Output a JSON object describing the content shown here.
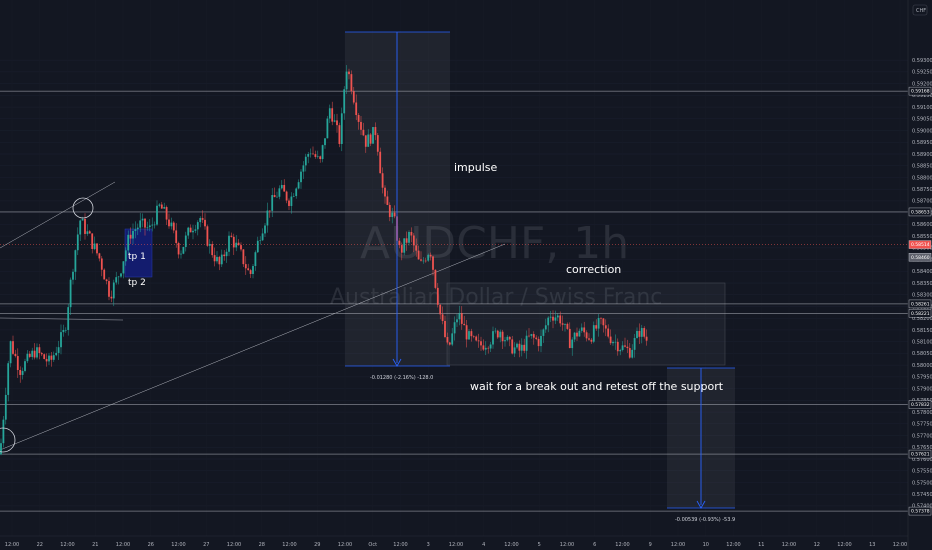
{
  "symbol": {
    "ticker": "AUDCHF, 1h",
    "name": "Australian Dollar / Swiss Franc",
    "currency": "CHF"
  },
  "annotations": {
    "impulse": "impulse",
    "correction": "correction",
    "wait": "wait for a break out and retest off the support",
    "tp1": "tp 1",
    "tp2": "tp 2"
  },
  "measures": {
    "impulse": "-0.01280 (-2.16%) -128.0",
    "target": "-0.00539 (-0.93%) -53.9"
  },
  "colors": {
    "background": "#131722",
    "up": "#26a69a",
    "down": "#ef5350",
    "measure_line": "#2962ff",
    "tp_box": "#131c6e"
  },
  "chart_data": {
    "type": "candlestick",
    "xlabels": [
      "12:00",
      "22",
      "12:00",
      "21",
      "12:00",
      "26",
      "12:00",
      "27",
      "12:00",
      "28",
      "12:00",
      "29",
      "12:00",
      "Oct",
      "12:00",
      "3",
      "12:00",
      "4",
      "12:00",
      "5",
      "12:00",
      "6",
      "12:00",
      "9",
      "12:00",
      "10",
      "12:00",
      "11",
      "12:00",
      "12",
      "12:00",
      "13",
      "12:00"
    ],
    "ylim": [
      0.5734,
      0.5942
    ],
    "yticks": [
      "0.59300",
      "0.59250",
      "0.59200",
      "0.59150",
      "0.59100",
      "0.59050",
      "0.59000",
      "0.58950",
      "0.58900",
      "0.58850",
      "0.58800",
      "0.58750",
      "0.58700",
      "0.58650",
      "0.58600",
      "0.58550",
      "0.58500",
      "0.58450",
      "0.58400",
      "0.58350",
      "0.58300",
      "0.58250",
      "0.58200",
      "0.58150",
      "0.58100",
      "0.58050",
      "0.58000",
      "0.57950",
      "0.57900",
      "0.57850",
      "0.57800",
      "0.57750",
      "0.57700",
      "0.57650",
      "0.57600",
      "0.57550",
      "0.57500",
      "0.57450",
      "0.57400"
    ],
    "price_tags": [
      {
        "value": "0.59168",
        "price": 0.59168,
        "style": "line"
      },
      {
        "value": "0.58653",
        "price": 0.58653,
        "style": "line"
      },
      {
        "value": "0.58514",
        "price": 0.58514,
        "style": "down"
      },
      {
        "value": "0.58460",
        "price": 0.5846,
        "style": "gray"
      },
      {
        "value": "0.58261",
        "price": 0.58261,
        "style": "line"
      },
      {
        "value": "0.58221",
        "price": 0.58221,
        "style": "line"
      },
      {
        "value": "0.57832",
        "price": 0.57832,
        "style": "line"
      },
      {
        "value": "0.57621",
        "price": 0.57621,
        "style": "line"
      },
      {
        "value": "0.57378",
        "price": 0.57378,
        "style": "line"
      }
    ],
    "path": [
      [
        0,
        0.5762
      ],
      [
        10,
        0.581
      ],
      [
        20,
        0.5798
      ],
      [
        35,
        0.5806
      ],
      [
        50,
        0.5801
      ],
      [
        65,
        0.5815
      ],
      [
        72,
        0.584
      ],
      [
        80,
        0.5862
      ],
      [
        90,
        0.5854
      ],
      [
        100,
        0.5845
      ],
      [
        110,
        0.583
      ],
      [
        120,
        0.584
      ],
      [
        130,
        0.5856
      ],
      [
        140,
        0.586
      ],
      [
        150,
        0.5858
      ],
      [
        160,
        0.5868
      ],
      [
        170,
        0.586
      ],
      [
        180,
        0.5848
      ],
      [
        190,
        0.5858
      ],
      [
        200,
        0.5863
      ],
      [
        210,
        0.585
      ],
      [
        220,
        0.5842
      ],
      [
        230,
        0.5855
      ],
      [
        240,
        0.5848
      ],
      [
        250,
        0.5838
      ],
      [
        260,
        0.5856
      ],
      [
        270,
        0.5868
      ],
      [
        280,
        0.5875
      ],
      [
        290,
        0.587
      ],
      [
        300,
        0.5882
      ],
      [
        310,
        0.5892
      ],
      [
        320,
        0.5886
      ],
      [
        330,
        0.591
      ],
      [
        340,
        0.5895
      ],
      [
        346,
        0.5928
      ],
      [
        350,
        0.5922
      ],
      [
        358,
        0.5906
      ],
      [
        366,
        0.5895
      ],
      [
        376,
        0.59
      ],
      [
        384,
        0.587
      ],
      [
        394,
        0.5862
      ],
      [
        400,
        0.5848
      ],
      [
        410,
        0.5856
      ],
      [
        420,
        0.5842
      ],
      [
        430,
        0.585
      ],
      [
        440,
        0.5822
      ],
      [
        448,
        0.5806
      ],
      [
        458,
        0.5822
      ],
      [
        468,
        0.5812
      ],
      [
        478,
        0.5808
      ],
      [
        488,
        0.581
      ],
      [
        500,
        0.5815
      ],
      [
        510,
        0.5808
      ],
      [
        520,
        0.5806
      ],
      [
        530,
        0.5812
      ],
      [
        540,
        0.581
      ],
      [
        550,
        0.5822
      ],
      [
        560,
        0.582
      ],
      [
        570,
        0.581
      ],
      [
        580,
        0.5815
      ],
      [
        590,
        0.5812
      ],
      [
        600,
        0.5818
      ],
      [
        610,
        0.5812
      ],
      [
        620,
        0.5808
      ],
      [
        630,
        0.5806
      ],
      [
        640,
        0.5815
      ],
      [
        648,
        0.581
      ]
    ]
  }
}
